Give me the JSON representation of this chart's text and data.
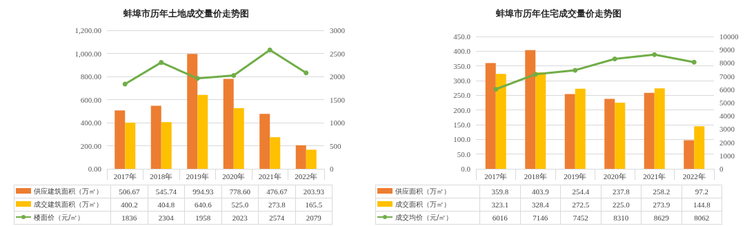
{
  "chart_data": [
    {
      "type": "bar",
      "title": "蚌埠市历年土地成交量价走势图",
      "categories": [
        "2017年",
        "2018年",
        "2019年",
        "2020年",
        "2021年",
        "2022年"
      ],
      "series": [
        {
          "name": "供应建筑面积（万㎡）",
          "color": "#ed7d31",
          "values": [
            506.67,
            545.74,
            994.93,
            778.6,
            476.67,
            203.93
          ],
          "value_labels": [
            "506.67",
            "545.74",
            "994.93",
            "778.60",
            "476.67",
            "203.93"
          ]
        },
        {
          "name": "成交建筑面积（万㎡）",
          "color": "#ffc000",
          "values": [
            400.2,
            404.8,
            640.6,
            525.0,
            273.8,
            165.5
          ],
          "value_labels": [
            "400.2",
            "404.8",
            "640.6",
            "525.0",
            "273.8",
            "165.5"
          ]
        },
        {
          "name": "楼面价（元/㎡）",
          "type": "line",
          "axis": "y2",
          "color": "#70ad47",
          "values": [
            1836,
            2304,
            1958,
            2023,
            2574,
            2079
          ],
          "value_labels": [
            "1836",
            "2304",
            "1958",
            "2023",
            "2574",
            "2079"
          ]
        }
      ],
      "ylim": [
        0,
        1200
      ],
      "yticks": [
        {
          "value": 0,
          "label": "0.00"
        },
        {
          "value": 200,
          "label": "200.00"
        },
        {
          "value": 400,
          "label": "400.00"
        },
        {
          "value": 600,
          "label": "600.00"
        },
        {
          "value": 800,
          "label": "800.00"
        },
        {
          "value": 1000,
          "label": "1,000.00"
        },
        {
          "value": 1200,
          "label": "1,200.00"
        }
      ],
      "y2lim": [
        0,
        3000
      ],
      "y2ticks": [
        0,
        500,
        1000,
        1500,
        2000,
        2500,
        3000
      ],
      "grid": "y",
      "legend": "bottom",
      "marker": "circle"
    },
    {
      "type": "bar",
      "title": "蚌埠市历年住宅成交量价走势图",
      "categories": [
        "2017年",
        "2018年",
        "2019年",
        "2020年",
        "2021年",
        "2022年"
      ],
      "series": [
        {
          "name": "供应面积（万㎡）",
          "color": "#ed7d31",
          "values": [
            359.8,
            403.9,
            254.4,
            237.8,
            258.2,
            97.2
          ],
          "value_labels": [
            "359.8",
            "403.9",
            "254.4",
            "237.8",
            "258.2",
            "97.2"
          ]
        },
        {
          "name": "成交面积（万㎡）",
          "color": "#ffc000",
          "values": [
            323.1,
            328.4,
            272.5,
            225.0,
            273.9,
            144.8
          ],
          "value_labels": [
            "323.1",
            "328.4",
            "272.5",
            "225.0",
            "273.9",
            "144.8"
          ]
        },
        {
          "name": "成交均价（元/㎡）",
          "type": "line",
          "axis": "y2",
          "color": "#70ad47",
          "values": [
            6016,
            7146,
            7452,
            8310,
            8629,
            8062
          ],
          "value_labels": [
            "6016",
            "7146",
            "7452",
            "8310",
            "8629",
            "8062"
          ]
        }
      ],
      "ylim": [
        0,
        450
      ],
      "yticks": [
        {
          "value": 0,
          "label": "0.0"
        },
        {
          "value": 50,
          "label": "50.0"
        },
        {
          "value": 100,
          "label": "100.0"
        },
        {
          "value": 150,
          "label": "150.0"
        },
        {
          "value": 200,
          "label": "200.0"
        },
        {
          "value": 250,
          "label": "250.0"
        },
        {
          "value": 300,
          "label": "300.0"
        },
        {
          "value": 350,
          "label": "350.0"
        },
        {
          "value": 400,
          "label": "400.0"
        },
        {
          "value": 450,
          "label": "450.0"
        }
      ],
      "y2lim": [
        0,
        10000
      ],
      "y2ticks": [
        0,
        1000,
        2000,
        3000,
        4000,
        5000,
        6000,
        7000,
        8000,
        9000,
        10000
      ],
      "grid": "y",
      "legend": "bottom",
      "marker": "circle"
    }
  ]
}
